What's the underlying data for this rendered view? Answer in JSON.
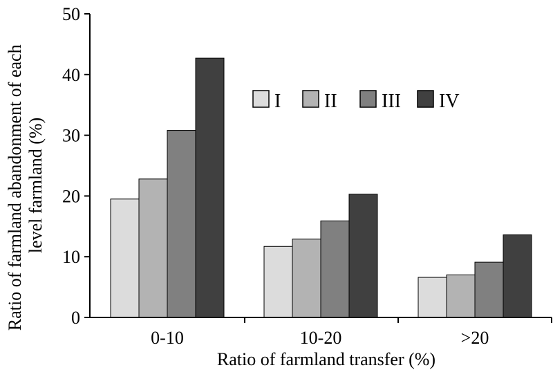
{
  "chart_data": {
    "type": "bar",
    "title": "",
    "xlabel": "Ratio of farmland transfer (%)",
    "ylabel": "Ratio of farmland abandonment of each level farmland (%)",
    "ylabel_lines": [
      "Ratio of farmland abandonment of each",
      "level farmland (%)"
    ],
    "categories": [
      "0-10",
      "10-20",
      ">20"
    ],
    "ylim": [
      0,
      50
    ],
    "yticks": [
      "0",
      "10",
      "20",
      "30",
      "40",
      "50"
    ],
    "grid": false,
    "legend_position": "top-right",
    "series": [
      {
        "name": "I",
        "values": [
          19.5,
          11.7,
          6.6
        ],
        "color": "#dcdcdc"
      },
      {
        "name": "II",
        "values": [
          22.8,
          12.9,
          7.0
        ],
        "color": "#b3b3b3"
      },
      {
        "name": "III",
        "values": [
          30.8,
          15.9,
          9.1
        ],
        "color": "#808080"
      },
      {
        "name": "IV",
        "values": [
          42.7,
          20.3,
          13.6
        ],
        "color": "#404040"
      }
    ]
  }
}
